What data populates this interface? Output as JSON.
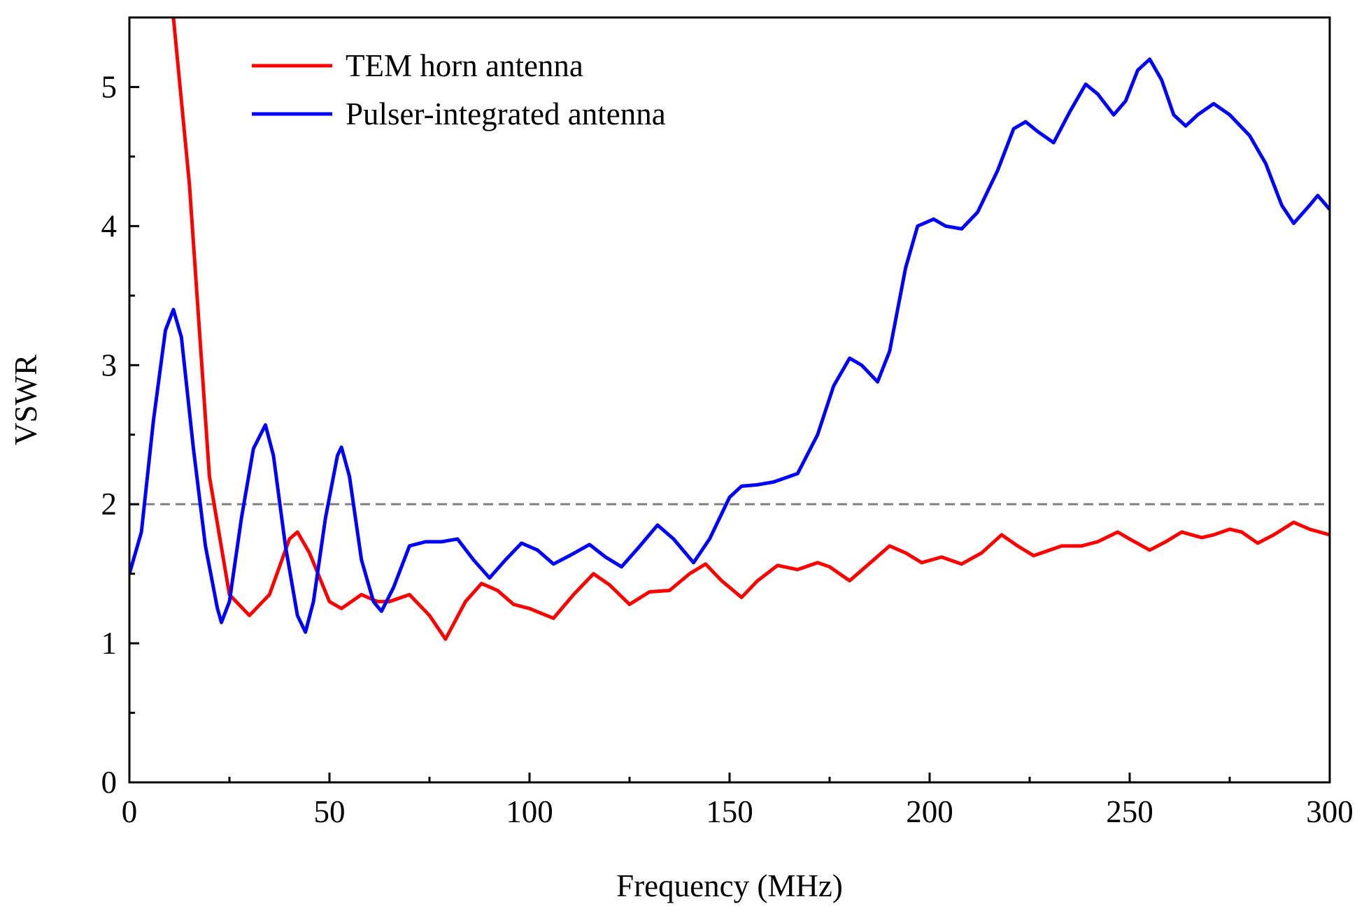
{
  "chart_data": {
    "type": "line",
    "x_label": "Frequency (MHz)",
    "y_label": "VSWR",
    "xlim": [
      0,
      300
    ],
    "ylim": [
      0,
      5.5
    ],
    "xticks": [
      0,
      50,
      100,
      150,
      200,
      250,
      300
    ],
    "yticks": [
      0,
      1,
      2,
      3,
      4,
      5
    ],
    "reference_line": 2,
    "legend": "top-left",
    "series": [
      {
        "name": "TEM horn antenna",
        "color": "#ff0000",
        "x": [
          11,
          15,
          20,
          25,
          30,
          35,
          40,
          42,
          45,
          50,
          53,
          58,
          62,
          65,
          70,
          75,
          79,
          84,
          88,
          92,
          96,
          100,
          106,
          111,
          116,
          120,
          125,
          130,
          135,
          140,
          144,
          148,
          153,
          157,
          162,
          167,
          172,
          175,
          180,
          184,
          190,
          194,
          198,
          203,
          208,
          213,
          218,
          222,
          226,
          233,
          238,
          242,
          247,
          250,
          255,
          259,
          263,
          268,
          271,
          275,
          278,
          282,
          286,
          291,
          295,
          300
        ],
        "values": [
          5.5,
          4.3,
          2.2,
          1.35,
          1.2,
          1.35,
          1.75,
          1.8,
          1.65,
          1.3,
          1.25,
          1.35,
          1.3,
          1.3,
          1.35,
          1.2,
          1.03,
          1.3,
          1.43,
          1.38,
          1.28,
          1.25,
          1.18,
          1.35,
          1.5,
          1.42,
          1.28,
          1.37,
          1.38,
          1.5,
          1.57,
          1.45,
          1.33,
          1.45,
          1.56,
          1.53,
          1.58,
          1.55,
          1.45,
          1.55,
          1.7,
          1.65,
          1.58,
          1.62,
          1.57,
          1.65,
          1.78,
          1.7,
          1.63,
          1.7,
          1.7,
          1.73,
          1.8,
          1.75,
          1.67,
          1.73,
          1.8,
          1.76,
          1.78,
          1.82,
          1.8,
          1.72,
          1.78,
          1.87,
          1.82,
          1.78
        ]
      },
      {
        "name": "Pulser-integrated antenna",
        "color": "#0000ff",
        "x": [
          0,
          3,
          6,
          9,
          11,
          13,
          16,
          19,
          22,
          23,
          25,
          28,
          31,
          34,
          36,
          39,
          42,
          44,
          46,
          49,
          52,
          53,
          55,
          58,
          61,
          63,
          66,
          70,
          74,
          78,
          82,
          86,
          90,
          94,
          98,
          102,
          106,
          110,
          115,
          119,
          123,
          127,
          132,
          136,
          141,
          145,
          150,
          153,
          157,
          161,
          167,
          172,
          176,
          180,
          183,
          187,
          190,
          194,
          197,
          201,
          204,
          208,
          212,
          217,
          221,
          224,
          227,
          231,
          235,
          239,
          242,
          246,
          249,
          252,
          255,
          258,
          261,
          264,
          267,
          271,
          275,
          280,
          284,
          288,
          291,
          295,
          297,
          300
        ],
        "values": [
          1.5,
          1.8,
          2.6,
          3.25,
          3.4,
          3.2,
          2.4,
          1.7,
          1.25,
          1.15,
          1.3,
          1.9,
          2.4,
          2.57,
          2.35,
          1.7,
          1.2,
          1.08,
          1.3,
          1.9,
          2.35,
          2.41,
          2.2,
          1.6,
          1.3,
          1.23,
          1.4,
          1.7,
          1.73,
          1.73,
          1.75,
          1.6,
          1.47,
          1.6,
          1.72,
          1.67,
          1.57,
          1.63,
          1.71,
          1.62,
          1.55,
          1.68,
          1.85,
          1.75,
          1.58,
          1.75,
          2.05,
          2.13,
          2.14,
          2.16,
          2.22,
          2.5,
          2.85,
          3.05,
          3.0,
          2.88,
          3.1,
          3.7,
          4.0,
          4.05,
          4.0,
          3.98,
          4.1,
          4.4,
          4.7,
          4.75,
          4.68,
          4.6,
          4.82,
          5.02,
          4.95,
          4.8,
          4.9,
          5.12,
          5.2,
          5.05,
          4.8,
          4.72,
          4.8,
          4.88,
          4.8,
          4.65,
          4.45,
          4.15,
          4.02,
          4.15,
          4.22,
          4.12
        ]
      }
    ]
  }
}
